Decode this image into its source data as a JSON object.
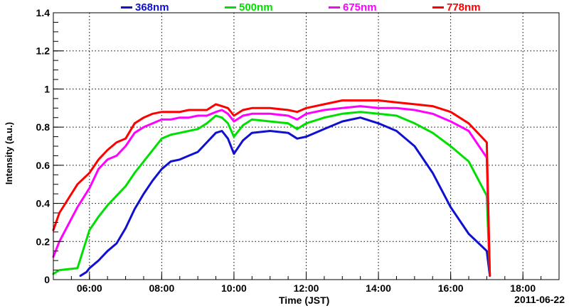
{
  "chart_data": {
    "type": "line",
    "title": "",
    "xlabel": "Time (JST)",
    "ylabel": "Intensity (a.u.)",
    "date": "2011-06-22",
    "xlim_hours": [
      5.0,
      19.0
    ],
    "ylim": [
      0,
      1.4
    ],
    "x_ticks": [
      "06:00",
      "08:00",
      "10:00",
      "12:00",
      "14:00",
      "16:00",
      "18:00"
    ],
    "y_ticks": [
      "0",
      "0.2",
      "0.4",
      "0.6",
      "0.8",
      "1",
      "1.2",
      "1.4"
    ],
    "grid": true,
    "legend_position": "top",
    "series": [
      {
        "name": "368nm",
        "color": "#1010d0",
        "x": [
          "05:45",
          "05:55",
          "06:00",
          "06:15",
          "06:30",
          "06:45",
          "07:00",
          "07:15",
          "07:30",
          "07:45",
          "08:00",
          "08:15",
          "08:30",
          "08:45",
          "09:00",
          "09:15",
          "09:30",
          "09:40",
          "09:50",
          "10:00",
          "10:15",
          "10:30",
          "11:00",
          "11:30",
          "11:45",
          "12:00",
          "12:30",
          "13:00",
          "13:15",
          "13:30",
          "14:00",
          "14:30",
          "15:00",
          "15:30",
          "16:00",
          "16:30",
          "17:00",
          "17:05"
        ],
        "y": [
          0.02,
          0.04,
          0.06,
          0.1,
          0.15,
          0.19,
          0.27,
          0.37,
          0.45,
          0.52,
          0.58,
          0.62,
          0.63,
          0.65,
          0.67,
          0.72,
          0.77,
          0.78,
          0.74,
          0.66,
          0.73,
          0.77,
          0.78,
          0.77,
          0.74,
          0.75,
          0.79,
          0.83,
          0.84,
          0.85,
          0.82,
          0.78,
          0.7,
          0.56,
          0.38,
          0.24,
          0.15,
          0.02
        ]
      },
      {
        "name": "500nm",
        "color": "#00e000",
        "x": [
          "05:00",
          "05:10",
          "05:40",
          "06:00",
          "06:15",
          "06:30",
          "06:45",
          "07:00",
          "07:15",
          "07:30",
          "07:45",
          "08:00",
          "08:15",
          "08:30",
          "08:45",
          "09:00",
          "09:15",
          "09:30",
          "09:40",
          "09:50",
          "10:00",
          "10:15",
          "10:30",
          "11:00",
          "11:30",
          "11:45",
          "12:00",
          "12:30",
          "13:00",
          "13:30",
          "14:00",
          "14:30",
          "15:00",
          "15:30",
          "16:00",
          "16:30",
          "17:00",
          "17:05"
        ],
        "y": [
          0.03,
          0.05,
          0.06,
          0.26,
          0.33,
          0.39,
          0.44,
          0.49,
          0.56,
          0.62,
          0.68,
          0.74,
          0.76,
          0.77,
          0.78,
          0.79,
          0.82,
          0.86,
          0.85,
          0.82,
          0.75,
          0.81,
          0.84,
          0.83,
          0.82,
          0.79,
          0.82,
          0.85,
          0.87,
          0.88,
          0.87,
          0.86,
          0.82,
          0.77,
          0.7,
          0.62,
          0.44,
          0.02
        ]
      },
      {
        "name": "675nm",
        "color": "#ff00ff",
        "x": [
          "05:00",
          "05:10",
          "05:40",
          "06:00",
          "06:15",
          "06:30",
          "06:45",
          "07:00",
          "07:15",
          "07:30",
          "07:45",
          "08:00",
          "08:15",
          "08:30",
          "08:45",
          "09:00",
          "09:15",
          "09:30",
          "09:40",
          "09:50",
          "10:00",
          "10:15",
          "10:30",
          "11:00",
          "11:30",
          "11:45",
          "12:00",
          "12:30",
          "13:00",
          "13:30",
          "14:00",
          "14:30",
          "15:00",
          "15:30",
          "16:00",
          "16:30",
          "17:00",
          "17:05"
        ],
        "y": [
          0.12,
          0.2,
          0.38,
          0.48,
          0.58,
          0.63,
          0.65,
          0.7,
          0.77,
          0.8,
          0.82,
          0.84,
          0.84,
          0.85,
          0.85,
          0.86,
          0.86,
          0.88,
          0.89,
          0.87,
          0.83,
          0.86,
          0.87,
          0.87,
          0.86,
          0.84,
          0.87,
          0.89,
          0.9,
          0.91,
          0.9,
          0.9,
          0.89,
          0.87,
          0.83,
          0.78,
          0.64,
          0.02
        ]
      },
      {
        "name": "778nm",
        "color": "#ff0000",
        "x": [
          "05:00",
          "05:10",
          "05:40",
          "06:00",
          "06:15",
          "06:30",
          "06:45",
          "07:00",
          "07:15",
          "07:30",
          "07:45",
          "08:00",
          "08:15",
          "08:30",
          "08:45",
          "09:00",
          "09:15",
          "09:30",
          "09:40",
          "09:50",
          "10:00",
          "10:15",
          "10:30",
          "11:00",
          "11:30",
          "11:45",
          "12:00",
          "12:30",
          "13:00",
          "13:30",
          "14:00",
          "14:30",
          "15:00",
          "15:30",
          "16:00",
          "16:30",
          "17:00",
          "17:05"
        ],
        "y": [
          0.26,
          0.35,
          0.5,
          0.56,
          0.63,
          0.68,
          0.72,
          0.74,
          0.82,
          0.85,
          0.87,
          0.88,
          0.88,
          0.88,
          0.89,
          0.89,
          0.89,
          0.92,
          0.91,
          0.9,
          0.86,
          0.89,
          0.9,
          0.9,
          0.89,
          0.88,
          0.9,
          0.92,
          0.94,
          0.94,
          0.94,
          0.93,
          0.92,
          0.91,
          0.88,
          0.82,
          0.72,
          0.02
        ]
      }
    ]
  }
}
